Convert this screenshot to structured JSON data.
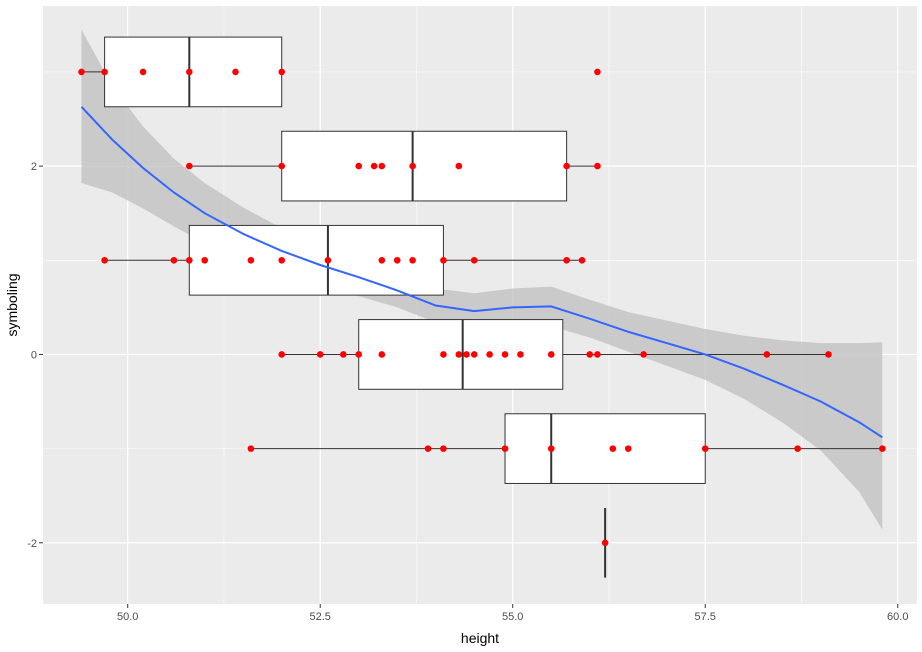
{
  "chart_data": {
    "type": "scatter",
    "overlays": [
      "horizontal-boxplot",
      "loess-smooth-with-ci"
    ],
    "xlabel": "height",
    "ylabel": "symboling",
    "xlim": [
      48.9,
      60.25
    ],
    "ylim": [
      -2.65,
      3.7
    ],
    "x_ticks": [
      50.0,
      52.5,
      55.0,
      57.5,
      60.0
    ],
    "x_tick_labels": [
      "50.0",
      "52.5",
      "55.0",
      "57.5",
      "60.0"
    ],
    "y_ticks": [
      -2,
      0,
      2
    ],
    "y_tick_labels": [
      "-2",
      "0",
      "2"
    ],
    "grid": true,
    "colors": {
      "panel_background": "#ebebeb",
      "grid": "#ffffff",
      "points": "#ff0000",
      "smooth_line": "#3366ff",
      "ribbon": "#bfbfbf",
      "box_fill": "#ffffff",
      "box_line": "#333333"
    },
    "boxes": [
      {
        "y": 3,
        "whisker_low": 49.4,
        "q1": 49.7,
        "median": 50.8,
        "q3": 52.0,
        "whisker_high": 52.0
      },
      {
        "y": 2,
        "whisker_low": 50.8,
        "q1": 52.0,
        "median": 53.7,
        "q3": 55.7,
        "whisker_high": 56.1
      },
      {
        "y": 1,
        "whisker_low": 49.7,
        "q1": 50.8,
        "median": 52.6,
        "q3": 54.1,
        "whisker_high": 55.9
      },
      {
        "y": 0,
        "whisker_low": 52.0,
        "q1": 53.0,
        "median": 54.35,
        "q3": 55.65,
        "whisker_high": 59.1
      },
      {
        "y": -1,
        "whisker_low": 51.6,
        "q1": 54.9,
        "median": 55.5,
        "q3": 57.5,
        "whisker_high": 59.8
      },
      {
        "y": -2,
        "whisker_low": 56.2,
        "q1": 56.2,
        "median": 56.2,
        "q3": 56.2,
        "whisker_high": 56.2
      }
    ],
    "points": [
      {
        "x": 49.4,
        "y": 3
      },
      {
        "x": 49.7,
        "y": 3
      },
      {
        "x": 50.2,
        "y": 3
      },
      {
        "x": 50.8,
        "y": 3
      },
      {
        "x": 51.4,
        "y": 3
      },
      {
        "x": 52.0,
        "y": 3
      },
      {
        "x": 56.1,
        "y": 3
      },
      {
        "x": 50.8,
        "y": 2
      },
      {
        "x": 52.0,
        "y": 2
      },
      {
        "x": 53.0,
        "y": 2
      },
      {
        "x": 53.2,
        "y": 2
      },
      {
        "x": 53.3,
        "y": 2
      },
      {
        "x": 53.7,
        "y": 2
      },
      {
        "x": 54.3,
        "y": 2
      },
      {
        "x": 55.7,
        "y": 2
      },
      {
        "x": 56.1,
        "y": 2
      },
      {
        "x": 49.7,
        "y": 1
      },
      {
        "x": 50.6,
        "y": 1
      },
      {
        "x": 50.8,
        "y": 1
      },
      {
        "x": 51.0,
        "y": 1
      },
      {
        "x": 51.6,
        "y": 1
      },
      {
        "x": 52.0,
        "y": 1
      },
      {
        "x": 52.6,
        "y": 1
      },
      {
        "x": 53.3,
        "y": 1
      },
      {
        "x": 53.5,
        "y": 1
      },
      {
        "x": 53.7,
        "y": 1
      },
      {
        "x": 54.1,
        "y": 1
      },
      {
        "x": 54.5,
        "y": 1
      },
      {
        "x": 55.7,
        "y": 1
      },
      {
        "x": 55.9,
        "y": 1
      },
      {
        "x": 52.0,
        "y": 0
      },
      {
        "x": 52.5,
        "y": 0
      },
      {
        "x": 52.8,
        "y": 0
      },
      {
        "x": 53.0,
        "y": 0
      },
      {
        "x": 53.3,
        "y": 0
      },
      {
        "x": 54.1,
        "y": 0
      },
      {
        "x": 54.3,
        "y": 0
      },
      {
        "x": 54.4,
        "y": 0
      },
      {
        "x": 54.5,
        "y": 0
      },
      {
        "x": 54.7,
        "y": 0
      },
      {
        "x": 54.9,
        "y": 0
      },
      {
        "x": 55.1,
        "y": 0
      },
      {
        "x": 55.5,
        "y": 0
      },
      {
        "x": 56.0,
        "y": 0
      },
      {
        "x": 56.1,
        "y": 0
      },
      {
        "x": 56.7,
        "y": 0
      },
      {
        "x": 58.3,
        "y": 0
      },
      {
        "x": 59.1,
        "y": 0
      },
      {
        "x": 51.6,
        "y": -1
      },
      {
        "x": 53.9,
        "y": -1
      },
      {
        "x": 54.1,
        "y": -1
      },
      {
        "x": 54.9,
        "y": -1
      },
      {
        "x": 55.5,
        "y": -1
      },
      {
        "x": 56.3,
        "y": -1
      },
      {
        "x": 56.5,
        "y": -1
      },
      {
        "x": 57.5,
        "y": -1
      },
      {
        "x": 58.7,
        "y": -1
      },
      {
        "x": 59.8,
        "y": -1
      },
      {
        "x": 56.2,
        "y": -2
      }
    ],
    "smooth": {
      "x": [
        49.4,
        49.8,
        50.2,
        50.6,
        51.0,
        51.5,
        52.0,
        52.5,
        53.0,
        53.5,
        54.0,
        54.5,
        55.0,
        55.5,
        56.0,
        56.5,
        57.0,
        57.5,
        58.0,
        58.5,
        59.0,
        59.5,
        59.8
      ],
      "y": [
        2.63,
        2.28,
        1.98,
        1.72,
        1.5,
        1.28,
        1.1,
        0.95,
        0.82,
        0.68,
        0.52,
        0.46,
        0.5,
        0.51,
        0.38,
        0.24,
        0.12,
        0.0,
        -0.15,
        -0.32,
        -0.5,
        -0.72,
        -0.88
      ],
      "lower": [
        1.82,
        1.72,
        1.55,
        1.36,
        1.18,
        1.0,
        0.86,
        0.73,
        0.62,
        0.5,
        0.34,
        0.27,
        0.3,
        0.3,
        0.18,
        0.03,
        -0.12,
        -0.27,
        -0.47,
        -0.72,
        -1.02,
        -1.46,
        -1.86
      ],
      "upper": [
        3.45,
        2.85,
        2.42,
        2.08,
        1.82,
        1.56,
        1.34,
        1.17,
        1.02,
        0.86,
        0.7,
        0.65,
        0.7,
        0.72,
        0.58,
        0.45,
        0.36,
        0.27,
        0.2,
        0.15,
        0.12,
        0.12,
        0.13
      ]
    }
  }
}
